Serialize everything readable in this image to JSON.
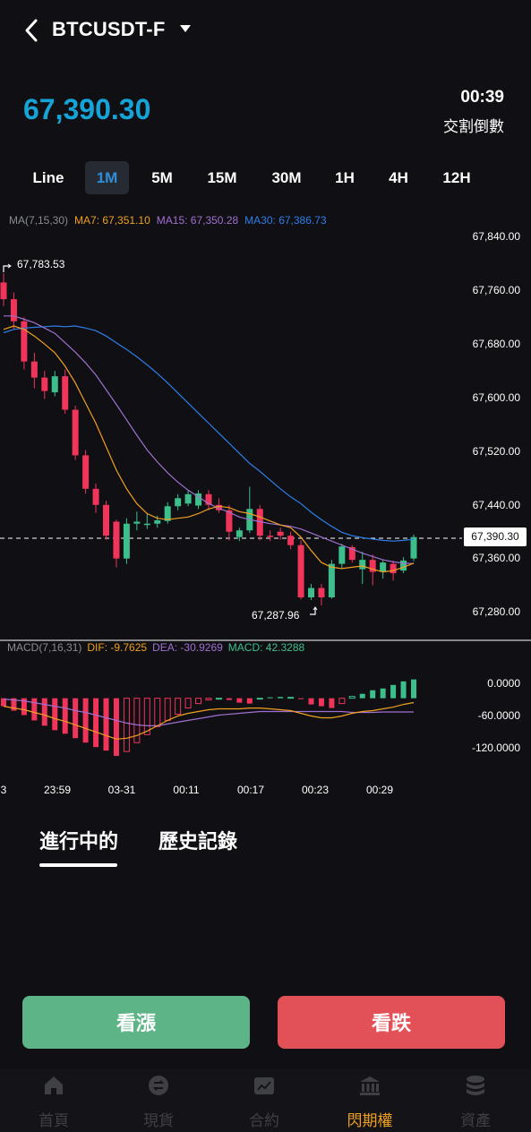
{
  "header": {
    "pair": "BTCUSDT-F",
    "price": "67,390.30",
    "countdown": "00:39",
    "countdown_label": "交割倒數"
  },
  "timeframes": [
    "Line",
    "1M",
    "5M",
    "15M",
    "30M",
    "1H",
    "4H",
    "12H"
  ],
  "active_timeframe": "1M",
  "ma_legend": {
    "label": "MA(7,15,30)",
    "ma7": "MA7: 67,351.10",
    "ma15": "MA15: 67,350.28",
    "ma30": "MA30: 67,386.73"
  },
  "price_axis": [
    "67,840.00",
    "67,760.00",
    "67,680.00",
    "67,600.00",
    "67,520.00",
    "67,440.00",
    "67,360.00",
    "67,280.00"
  ],
  "current_price_tag": "67,390.30",
  "high_label": "67,783.53",
  "low_label": "67,287.96",
  "macd_legend": {
    "label": "MACD(7,16,31)",
    "dif": "DIF: -9.7625",
    "dea": "DEA: -30.9269",
    "macd": "MACD: 42.3288"
  },
  "macd_axis": [
    "0.0000",
    "-60.0000",
    "-120.0000"
  ],
  "time_axis": [
    "3",
    "23:59",
    "03-31",
    "00:11",
    "00:17",
    "00:23",
    "00:29"
  ],
  "orders_tabs": [
    "進行中的",
    "歷史記錄"
  ],
  "buttons": {
    "up": "看漲",
    "down": "看跌"
  },
  "nav": [
    {
      "label": "首頁",
      "icon": "home-icon"
    },
    {
      "label": "現貨",
      "icon": "exchange-icon"
    },
    {
      "label": "合約",
      "icon": "contract-icon"
    },
    {
      "label": "閃期權",
      "icon": "bank-icon"
    },
    {
      "label": "資產",
      "icon": "coins-icon"
    }
  ],
  "active_nav": "閃期權",
  "colors": {
    "up": "#3dbf8c",
    "down": "#f0345a",
    "ma7": "#f0a020",
    "ma15": "#a070d0",
    "ma30": "#2f7fe8",
    "price": "#16a4d6",
    "accent": "#f0a020"
  },
  "chart_data": {
    "type": "candlestick",
    "y_range": [
      67280,
      67840
    ],
    "candles": [
      {
        "o": 67770,
        "c": 67745,
        "h": 67783.53,
        "l": 67735
      },
      {
        "o": 67745,
        "c": 67712,
        "h": 67755,
        "l": 67700
      },
      {
        "o": 67712,
        "c": 67652,
        "h": 67718,
        "l": 67640
      },
      {
        "o": 67652,
        "c": 67628,
        "h": 67665,
        "l": 67612
      },
      {
        "o": 67628,
        "c": 67608,
        "h": 67638,
        "l": 67596
      },
      {
        "o": 67606,
        "c": 67630,
        "h": 67638,
        "l": 67600
      },
      {
        "o": 67630,
        "c": 67580,
        "h": 67640,
        "l": 67574
      },
      {
        "o": 67580,
        "c": 67512,
        "h": 67586,
        "l": 67505
      },
      {
        "o": 67512,
        "c": 67462,
        "h": 67520,
        "l": 67455
      },
      {
        "o": 67462,
        "c": 67438,
        "h": 67470,
        "l": 67426
      },
      {
        "o": 67438,
        "c": 67392,
        "h": 67444,
        "l": 67386
      },
      {
        "o": 67413,
        "c": 67358,
        "h": 67416,
        "l": 67345
      },
      {
        "o": 67358,
        "c": 67410,
        "h": 67418,
        "l": 67350
      },
      {
        "o": 67410,
        "c": 67413,
        "h": 67428,
        "l": 67400
      },
      {
        "o": 67408,
        "c": 67410,
        "h": 67426,
        "l": 67402
      },
      {
        "o": 67410,
        "c": 67415,
        "h": 67422,
        "l": 67404
      },
      {
        "o": 67414,
        "c": 67436,
        "h": 67442,
        "l": 67410
      },
      {
        "o": 67436,
        "c": 67448,
        "h": 67454,
        "l": 67430
      },
      {
        "o": 67440,
        "c": 67454,
        "h": 67460,
        "l": 67436
      },
      {
        "o": 67437,
        "c": 67455,
        "h": 67460,
        "l": 67432
      },
      {
        "o": 67454,
        "c": 67438,
        "h": 67460,
        "l": 67430
      },
      {
        "o": 67438,
        "c": 67430,
        "h": 67448,
        "l": 67426
      },
      {
        "o": 67430,
        "c": 67398,
        "h": 67438,
        "l": 67385
      },
      {
        "o": 67390,
        "c": 67400,
        "h": 67404,
        "l": 67384
      },
      {
        "o": 67400,
        "c": 67432,
        "h": 67465,
        "l": 67396
      },
      {
        "o": 67432,
        "c": 67392,
        "h": 67438,
        "l": 67385
      },
      {
        "o": 67392,
        "c": 67390,
        "h": 67400,
        "l": 67384
      },
      {
        "o": 67398,
        "c": 67392,
        "h": 67404,
        "l": 67386
      },
      {
        "o": 67392,
        "c": 67378,
        "h": 67398,
        "l": 67372
      },
      {
        "o": 67378,
        "c": 67300,
        "h": 67385,
        "l": 67297
      },
      {
        "o": 67300,
        "c": 67314,
        "h": 67320,
        "l": 67296
      },
      {
        "o": 67314,
        "c": 67300,
        "h": 67320,
        "l": 67288
      },
      {
        "o": 67300,
        "c": 67350,
        "h": 67356,
        "l": 67298
      },
      {
        "o": 67350,
        "c": 67376,
        "h": 67380,
        "l": 67344
      },
      {
        "o": 67375,
        "c": 67356,
        "h": 67378,
        "l": 67352
      },
      {
        "o": 67342,
        "c": 67356,
        "h": 67368,
        "l": 67320
      },
      {
        "o": 67356,
        "c": 67338,
        "h": 67364,
        "l": 67318
      },
      {
        "o": 67338,
        "c": 67352,
        "h": 67356,
        "l": 67328
      },
      {
        "o": 67350,
        "c": 67336,
        "h": 67355,
        "l": 67325
      },
      {
        "o": 67340,
        "c": 67355,
        "h": 67360,
        "l": 67336
      },
      {
        "o": 67358,
        "c": 67390,
        "h": 67394,
        "l": 67354
      }
    ],
    "ma7": [
      67700,
      67705,
      67700,
      67690,
      67678,
      67665,
      67645,
      67620,
      67590,
      67560,
      67525,
      67490,
      67462,
      67440,
      67425,
      67418,
      67416,
      67418,
      67420,
      67425,
      67432,
      67436,
      67434,
      67428,
      67425,
      67420,
      67414,
      67408,
      67404,
      67390,
      67370,
      67352,
      67345,
      67343,
      67345,
      67347,
      67342,
      67338,
      67340,
      67345,
      67351.1
    ],
    "ma15": [
      67720,
      67720,
      67715,
      67710,
      67702,
      67694,
      67680,
      67666,
      67650,
      67632,
      67610,
      67588,
      67565,
      67542,
      67520,
      67502,
      67486,
      67472,
      67460,
      67450,
      67440,
      67433,
      67427,
      67420,
      67416,
      67413,
      67410,
      67408,
      67406,
      67402,
      67396,
      67390,
      67384,
      67378,
      67372,
      67366,
      67361,
      67356,
      67353,
      67351,
      67350.28
    ],
    "ma30": [
      67695,
      67700,
      67702,
      67703,
      67704,
      67705,
      67704,
      67705,
      67702,
      67698,
      67690,
      67680,
      67670,
      67659,
      67647,
      67634,
      67620,
      67605,
      67590,
      67575,
      67560,
      67545,
      67530,
      67515,
      67500,
      67488,
      67475,
      67462,
      67450,
      67440,
      67427,
      67416,
      67406,
      67397,
      67392,
      67389,
      67387,
      67385,
      67384,
      67385,
      67386.73
    ],
    "macd_y_range": [
      -150,
      80
    ],
    "macd_hist": [
      -18,
      -28,
      -38,
      -50,
      -62,
      -72,
      -80,
      -90,
      -100,
      -110,
      -118,
      -130,
      -120,
      -100,
      -82,
      -64,
      -50,
      -36,
      -22,
      -12,
      -4,
      0,
      -4,
      -10,
      -12,
      0,
      2,
      3,
      2,
      -2,
      -14,
      -18,
      -22,
      -12,
      4,
      10,
      18,
      22,
      30,
      38,
      42.3288
    ],
    "macd_dif": [
      -18,
      -22,
      -26,
      -32,
      -38,
      -46,
      -52,
      -60,
      -68,
      -76,
      -84,
      -92,
      -90,
      -84,
      -74,
      -62,
      -50,
      -40,
      -34,
      -30,
      -26,
      -24,
      -24,
      -24,
      -22,
      -22,
      -24,
      -26,
      -28,
      -34,
      -40,
      -44,
      -44,
      -40,
      -34,
      -30,
      -28,
      -24,
      -20,
      -14,
      -9.7625
    ],
    "macd_dea": [
      -2,
      -4,
      -6,
      -10,
      -14,
      -18,
      -22,
      -28,
      -32,
      -38,
      -44,
      -50,
      -56,
      -60,
      -62,
      -62,
      -58,
      -54,
      -50,
      -46,
      -42,
      -38,
      -36,
      -34,
      -32,
      -30,
      -30,
      -30,
      -30,
      -30,
      -30,
      -30,
      -30,
      -30,
      -32,
      -32,
      -32,
      -31,
      -31,
      -31,
      -30.9269
    ]
  }
}
